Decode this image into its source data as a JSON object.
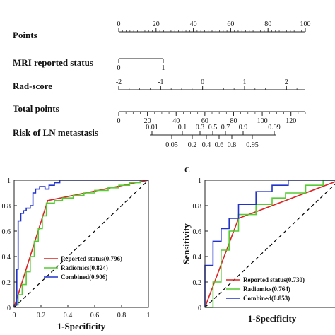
{
  "chart_data": [
    {
      "type": "nomogram",
      "rows": [
        {
          "label": "Points",
          "ticks": [
            {
              "v": 0,
              "t": "0"
            },
            {
              "v": 20,
              "t": "20"
            },
            {
              "v": 40,
              "t": "40"
            },
            {
              "v": 60,
              "t": "60"
            },
            {
              "v": 80,
              "t": "80"
            },
            {
              "v": 100,
              "t": "100"
            }
          ],
          "range": [
            0,
            100
          ],
          "tick_side": "top",
          "minor_step": 2
        },
        {
          "label": "MRI reported status",
          "ticks": [
            {
              "v": 0,
              "t": "0"
            },
            {
              "v": 1,
              "t": "1"
            }
          ],
          "range": [
            0,
            1
          ],
          "tick_side": "bottom",
          "minor_step": 0
        },
        {
          "label": "Rad-score",
          "ticks": [
            {
              "v": -2,
              "t": "-2"
            },
            {
              "v": -1,
              "t": "-1"
            },
            {
              "v": 0,
              "t": "0"
            },
            {
              "v": 1,
              "t": "1"
            },
            {
              "v": 2,
              "t": "2"
            }
          ],
          "range": [
            -2,
            2.45
          ],
          "tick_side": "top",
          "minor_step": 0.25
        },
        {
          "label": "Total points",
          "ticks": [
            {
              "v": 0,
              "t": "0"
            },
            {
              "v": 20,
              "t": "20"
            },
            {
              "v": 40,
              "t": "40"
            },
            {
              "v": 60,
              "t": "60"
            },
            {
              "v": 80,
              "t": "80"
            },
            {
              "v": 100,
              "t": "100"
            },
            {
              "v": 120,
              "t": "120"
            }
          ],
          "range": [
            0,
            130
          ],
          "tick_side": "bottom",
          "minor_step": 5
        },
        {
          "label": "Risk of LN metastasis",
          "ticks_top": [
            {
              "v": 0.01,
              "t": "0.01"
            },
            {
              "v": 0.1,
              "t": "0.1"
            },
            {
              "v": 0.3,
              "t": "0.3"
            },
            {
              "v": 0.5,
              "t": "0.5"
            },
            {
              "v": 0.7,
              "t": "0.7"
            },
            {
              "v": 0.9,
              "t": "0.9"
            },
            {
              "v": 0.99,
              "t": "0.99"
            }
          ],
          "ticks_bottom": [
            {
              "v": 0.05,
              "t": "0.05"
            },
            {
              "v": 0.2,
              "t": "0.2"
            },
            {
              "v": 0.4,
              "t": "0.4"
            },
            {
              "v": 0.6,
              "t": "0.6"
            },
            {
              "v": 0.8,
              "t": "0.8"
            },
            {
              "v": 0.95,
              "t": "0.95"
            }
          ]
        }
      ]
    },
    {
      "type": "line",
      "panel_label": "",
      "xlabel": "1-Specificity",
      "ylabel": "",
      "xlim": [
        0,
        1
      ],
      "ylim": [
        0,
        1
      ],
      "x_ticks": [
        "0",
        "0.2",
        "0.4",
        "0.6",
        "0.8",
        "1"
      ],
      "y_ticks": [
        "0",
        "0.2",
        "0.4",
        "0.6",
        "0.8",
        "1"
      ],
      "legend_position": "bottom-right",
      "series": [
        {
          "name": "Reported status(0.796)",
          "color": "#dd2222",
          "points": [
            [
              0,
              0
            ],
            [
              0.25,
              0.84
            ],
            [
              1,
              1
            ]
          ]
        },
        {
          "name": "Radiomics(0.824)",
          "color": "#55cc33",
          "points": [
            [
              0,
              0
            ],
            [
              0,
              0.02
            ],
            [
              0.03,
              0.02
            ],
            [
              0.03,
              0.1
            ],
            [
              0.06,
              0.1
            ],
            [
              0.06,
              0.18
            ],
            [
              0.09,
              0.18
            ],
            [
              0.09,
              0.28
            ],
            [
              0.12,
              0.28
            ],
            [
              0.12,
              0.4
            ],
            [
              0.15,
              0.4
            ],
            [
              0.15,
              0.52
            ],
            [
              0.18,
              0.52
            ],
            [
              0.18,
              0.62
            ],
            [
              0.21,
              0.62
            ],
            [
              0.21,
              0.72
            ],
            [
              0.24,
              0.72
            ],
            [
              0.24,
              0.82
            ],
            [
              0.3,
              0.82
            ],
            [
              0.3,
              0.84
            ],
            [
              0.36,
              0.84
            ],
            [
              0.36,
              0.86
            ],
            [
              0.44,
              0.86
            ],
            [
              0.44,
              0.88
            ],
            [
              0.52,
              0.88
            ],
            [
              0.52,
              0.9
            ],
            [
              0.6,
              0.9
            ],
            [
              0.6,
              0.92
            ],
            [
              0.7,
              0.92
            ],
            [
              0.7,
              0.94
            ],
            [
              0.78,
              0.94
            ],
            [
              0.78,
              0.96
            ],
            [
              0.86,
              0.96
            ],
            [
              0.86,
              0.98
            ],
            [
              0.94,
              0.98
            ],
            [
              0.94,
              1
            ],
            [
              1,
              1
            ]
          ]
        },
        {
          "name": "Combined(0.906)",
          "color": "#2233cc",
          "points": [
            [
              0,
              0
            ],
            [
              0,
              0.02
            ],
            [
              0.02,
              0.02
            ],
            [
              0.02,
              0.3
            ],
            [
              0.03,
              0.3
            ],
            [
              0.03,
              0.68
            ],
            [
              0.05,
              0.68
            ],
            [
              0.05,
              0.74
            ],
            [
              0.07,
              0.74
            ],
            [
              0.07,
              0.76
            ],
            [
              0.09,
              0.76
            ],
            [
              0.09,
              0.78
            ],
            [
              0.12,
              0.78
            ],
            [
              0.12,
              0.8
            ],
            [
              0.14,
              0.8
            ],
            [
              0.14,
              0.9
            ],
            [
              0.16,
              0.9
            ],
            [
              0.16,
              0.93
            ],
            [
              0.19,
              0.93
            ],
            [
              0.19,
              0.95
            ],
            [
              0.23,
              0.95
            ],
            [
              0.23,
              0.93
            ],
            [
              0.26,
              0.93
            ],
            [
              0.26,
              0.96
            ],
            [
              0.3,
              0.96
            ],
            [
              0.3,
              0.98
            ],
            [
              0.34,
              0.98
            ],
            [
              0.34,
              1
            ],
            [
              1,
              1
            ]
          ]
        },
        {
          "name": "",
          "color": "#000000",
          "dashed": true,
          "points": [
            [
              0,
              0
            ],
            [
              1,
              1
            ]
          ]
        }
      ]
    },
    {
      "type": "line",
      "panel_label": "C",
      "xlabel": "1-Specificity",
      "ylabel": "Sensitivity",
      "xlim": [
        0,
        1
      ],
      "ylim": [
        0,
        1
      ],
      "x_ticks": [],
      "y_ticks": [
        "0",
        "0.2",
        "0.4",
        "0.6",
        "0.8",
        "1"
      ],
      "legend_position": "bottom-right",
      "series": [
        {
          "name": "Reported status(0.730)",
          "color": "#dd2222",
          "points": [
            [
              0,
              0
            ],
            [
              0.25,
              0.7
            ],
            [
              1,
              1
            ]
          ]
        },
        {
          "name": "Radiomics(0.764)",
          "color": "#55cc33",
          "points": [
            [
              0,
              0
            ],
            [
              0.06,
              0
            ],
            [
              0.06,
              0.2
            ],
            [
              0.12,
              0.2
            ],
            [
              0.12,
              0.45
            ],
            [
              0.18,
              0.45
            ],
            [
              0.18,
              0.6
            ],
            [
              0.25,
              0.6
            ],
            [
              0.25,
              0.73
            ],
            [
              0.38,
              0.73
            ],
            [
              0.38,
              0.81
            ],
            [
              0.5,
              0.81
            ],
            [
              0.5,
              0.86
            ],
            [
              0.6,
              0.86
            ],
            [
              0.6,
              0.9
            ],
            [
              0.75,
              0.9
            ],
            [
              0.75,
              0.96
            ],
            [
              0.88,
              0.96
            ],
            [
              0.88,
              1
            ],
            [
              1,
              1
            ]
          ]
        },
        {
          "name": "Combined(0.853)",
          "color": "#2233cc",
          "points": [
            [
              0,
              0
            ],
            [
              0,
              0.33
            ],
            [
              0.06,
              0.33
            ],
            [
              0.06,
              0.52
            ],
            [
              0.12,
              0.52
            ],
            [
              0.12,
              0.62
            ],
            [
              0.18,
              0.62
            ],
            [
              0.18,
              0.7
            ],
            [
              0.25,
              0.7
            ],
            [
              0.25,
              0.81
            ],
            [
              0.38,
              0.81
            ],
            [
              0.38,
              0.91
            ],
            [
              0.5,
              0.91
            ],
            [
              0.5,
              0.96
            ],
            [
              0.62,
              0.96
            ],
            [
              0.62,
              1
            ],
            [
              1,
              1
            ]
          ]
        },
        {
          "name": "",
          "color": "#000000",
          "dashed": true,
          "points": [
            [
              0,
              0
            ],
            [
              1,
              1
            ]
          ]
        }
      ]
    }
  ]
}
